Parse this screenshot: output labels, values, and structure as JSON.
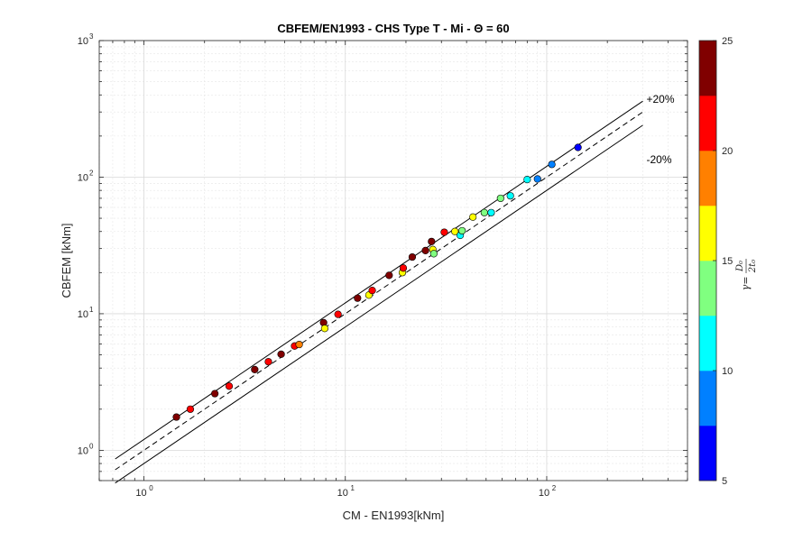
{
  "chart_data": {
    "type": "scatter",
    "title": "CBFEM/EN1993 - CHS Type T - Mi - Θ = 60",
    "xlabel": "CM - EN1993[kNm]",
    "ylabel": "CBFEM [kNm]",
    "x_scale": "log",
    "y_scale": "log",
    "xlim": [
      0.6,
      500
    ],
    "ylim": [
      0.6,
      1000
    ],
    "grid": true,
    "minor_grid": true,
    "x_ticks": [
      {
        "base": "10",
        "exp": "0"
      },
      {
        "base": "10",
        "exp": "1"
      },
      {
        "base": "10",
        "exp": "2"
      }
    ],
    "y_ticks": [
      {
        "base": "10",
        "exp": "0"
      },
      {
        "base": "10",
        "exp": "1"
      },
      {
        "base": "10",
        "exp": "2"
      },
      {
        "base": "10",
        "exp": "3"
      }
    ],
    "reference_lines": [
      {
        "label": "+20%",
        "factor": 1.2,
        "style": "solid"
      },
      {
        "label": "",
        "factor": 1.0,
        "style": "dashed"
      },
      {
        "label": "-20%",
        "factor": 0.8,
        "style": "solid"
      }
    ],
    "reference_x_range": [
      0.72,
      300
    ],
    "colorbar": {
      "label_symbol": "γ",
      "label_num": "D₀",
      "label_den": "2t₀",
      "range": [
        5,
        25
      ],
      "ticks": [
        "5",
        "10",
        "15",
        "20",
        "25"
      ],
      "colors": [
        "#0000ff",
        "#0080ff",
        "#00ffff",
        "#80ff80",
        "#ffff00",
        "#ff8000",
        "#ff0000",
        "#800000"
      ]
    },
    "points": [
      {
        "x": 1.45,
        "y": 1.75,
        "c": 24
      },
      {
        "x": 1.7,
        "y": 2.0,
        "c": 21
      },
      {
        "x": 2.25,
        "y": 2.6,
        "c": 24
      },
      {
        "x": 2.65,
        "y": 2.95,
        "c": 21
      },
      {
        "x": 3.55,
        "y": 3.9,
        "c": 24
      },
      {
        "x": 4.15,
        "y": 4.45,
        "c": 21
      },
      {
        "x": 4.8,
        "y": 5.05,
        "c": 24
      },
      {
        "x": 5.6,
        "y": 5.8,
        "c": 21
      },
      {
        "x": 5.9,
        "y": 5.95,
        "c": 18
      },
      {
        "x": 7.8,
        "y": 8.6,
        "c": 24
      },
      {
        "x": 7.9,
        "y": 7.8,
        "c": 17
      },
      {
        "x": 9.2,
        "y": 9.9,
        "c": 21
      },
      {
        "x": 11.5,
        "y": 13.0,
        "c": 24
      },
      {
        "x": 13.1,
        "y": 13.7,
        "c": 17
      },
      {
        "x": 13.6,
        "y": 14.8,
        "c": 21
      },
      {
        "x": 16.5,
        "y": 19.1,
        "c": 24
      },
      {
        "x": 19.2,
        "y": 20.0,
        "c": 17
      },
      {
        "x": 19.4,
        "y": 21.6,
        "c": 21
      },
      {
        "x": 21.5,
        "y": 26.0,
        "c": 24
      },
      {
        "x": 25.0,
        "y": 29.0,
        "c": 24
      },
      {
        "x": 26.8,
        "y": 33.8,
        "c": 24
      },
      {
        "x": 27.2,
        "y": 29.5,
        "c": 17
      },
      {
        "x": 27.5,
        "y": 27.5,
        "c": 14
      },
      {
        "x": 31.0,
        "y": 39.5,
        "c": 21
      },
      {
        "x": 35.0,
        "y": 40.0,
        "c": 17
      },
      {
        "x": 37.2,
        "y": 37.5,
        "c": 12
      },
      {
        "x": 38.0,
        "y": 40.5,
        "c": 14
      },
      {
        "x": 43.0,
        "y": 51.0,
        "c": 17
      },
      {
        "x": 49.0,
        "y": 55.0,
        "c": 14
      },
      {
        "x": 53.0,
        "y": 55.0,
        "c": 12
      },
      {
        "x": 59.0,
        "y": 70.0,
        "c": 14
      },
      {
        "x": 66.0,
        "y": 73.0,
        "c": 12
      },
      {
        "x": 80.0,
        "y": 96.0,
        "c": 11
      },
      {
        "x": 90.0,
        "y": 97.0,
        "c": 9
      },
      {
        "x": 106.0,
        "y": 124.0,
        "c": 9
      },
      {
        "x": 143.0,
        "y": 165.0,
        "c": 6
      }
    ]
  }
}
